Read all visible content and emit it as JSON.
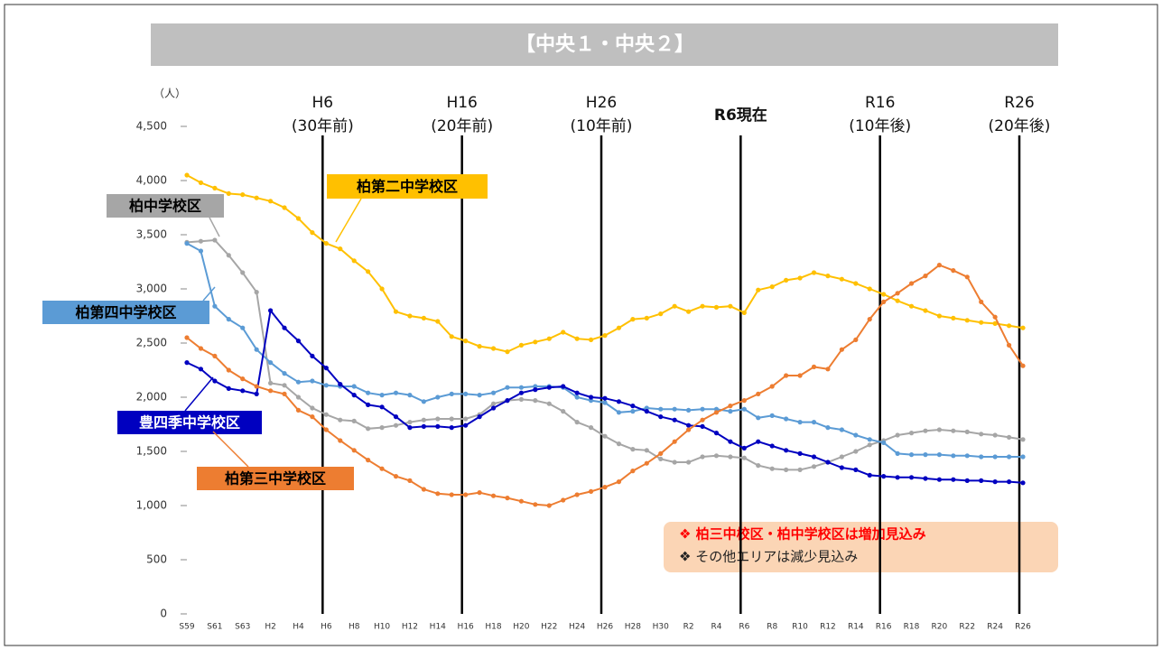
{
  "chart_data": {
    "type": "line",
    "title": "【中央１・中央２】",
    "y_label": "（人）",
    "categories": [
      "S59",
      null,
      "S61",
      null,
      "S63",
      null,
      "H2",
      null,
      "H4",
      null,
      "H6",
      null,
      "H8",
      null,
      "H10",
      null,
      "H12",
      null,
      "H14",
      null,
      "H16",
      null,
      "H18",
      null,
      "H20",
      null,
      "H22",
      null,
      "H24",
      null,
      "H26",
      null,
      "H28",
      null,
      "H30",
      null,
      "R2",
      null,
      "R4",
      null,
      "R6",
      null,
      "R8",
      null,
      "R10",
      null,
      "R12",
      null,
      "R14",
      null,
      "R16",
      null,
      "R18",
      null,
      "R20",
      null,
      "R22",
      null,
      "R24",
      null,
      "R26"
    ],
    "ylim": [
      0,
      4500
    ],
    "yticks": [
      0,
      500,
      {
        "value": 1000,
        "label": "1,000"
      },
      {
        "value": 1500,
        "label": "1,500"
      },
      {
        "value": 2000,
        "label": "2,000"
      },
      {
        "value": 2500,
        "label": "2,500"
      },
      {
        "value": 3000,
        "label": "3,000"
      },
      {
        "value": 3500,
        "label": "3,500"
      },
      {
        "value": 4000,
        "label": "4,000"
      },
      {
        "value": 4500,
        "label": "4,500"
      }
    ],
    "series": [
      {
        "name": "柏第二中学校区",
        "color": "#ffc000",
        "text_color": "#000000",
        "values": [
          4050,
          3980,
          3930,
          3880,
          3870,
          3840,
          3810,
          3750,
          3650,
          3520,
          3420,
          3370,
          3260,
          3160,
          3000,
          2790,
          2750,
          2730,
          2700,
          2560,
          2520,
          2470,
          2450,
          2420,
          2480,
          2510,
          2540,
          2600,
          2540,
          2530,
          2570,
          2640,
          2720,
          2730,
          2770,
          2840,
          2790,
          2840,
          2830,
          2840,
          2780,
          2990,
          3020,
          3080,
          3100,
          3150,
          3120,
          3090,
          3050,
          3000,
          2950,
          2890,
          2840,
          2800,
          2750,
          2730,
          2710,
          2690,
          2680,
          2660,
          2640
        ]
      },
      {
        "name": "柏中学校区",
        "color": "#a6a6a6",
        "text_color": "#000000",
        "values": [
          3430,
          3440,
          3450,
          3310,
          3150,
          2970,
          2130,
          2110,
          2000,
          1900,
          1840,
          1790,
          1780,
          1710,
          1720,
          1740,
          1770,
          1790,
          1800,
          1800,
          1800,
          1840,
          1940,
          1970,
          1980,
          1970,
          1940,
          1870,
          1770,
          1720,
          1640,
          1570,
          1520,
          1510,
          1430,
          1400,
          1400,
          1450,
          1460,
          1450,
          1440,
          1370,
          1340,
          1330,
          1330,
          1360,
          1400,
          1450,
          1500,
          1560,
          1600,
          1650,
          1670,
          1690,
          1700,
          1690,
          1680,
          1660,
          1650,
          1630,
          1610
        ]
      },
      {
        "name": "柏第四中学校区",
        "color": "#5b9bd5",
        "text_color": "#000000",
        "values": [
          3420,
          3350,
          2840,
          2720,
          2640,
          2440,
          2320,
          2220,
          2140,
          2150,
          2110,
          2100,
          2100,
          2040,
          2020,
          2040,
          2020,
          1960,
          2000,
          2030,
          2030,
          2020,
          2040,
          2090,
          2090,
          2100,
          2100,
          2090,
          2000,
          1970,
          1950,
          1860,
          1870,
          1900,
          1890,
          1890,
          1880,
          1890,
          1890,
          1870,
          1890,
          1810,
          1830,
          1800,
          1770,
          1770,
          1720,
          1700,
          1650,
          1610,
          1580,
          1480,
          1470,
          1470,
          1470,
          1460,
          1460,
          1450,
          1450,
          1450,
          1450
        ]
      },
      {
        "name": "豊四季中学校区",
        "color": "#0000c0",
        "text_color": "#ffffff",
        "values": [
          2320,
          2260,
          2150,
          2080,
          2060,
          2030,
          2800,
          2640,
          2520,
          2380,
          2270,
          2120,
          2020,
          1930,
          1910,
          1820,
          1720,
          1730,
          1730,
          1720,
          1740,
          1820,
          1900,
          1970,
          2040,
          2070,
          2090,
          2100,
          2040,
          2000,
          1990,
          1960,
          1920,
          1870,
          1820,
          1790,
          1740,
          1730,
          1670,
          1590,
          1530,
          1590,
          1550,
          1510,
          1480,
          1450,
          1400,
          1350,
          1330,
          1280,
          1270,
          1260,
          1260,
          1250,
          1240,
          1240,
          1230,
          1230,
          1220,
          1220,
          1210
        ]
      },
      {
        "name": "柏第三中学校区",
        "color": "#ed7d31",
        "text_color": "#000000",
        "values": [
          2550,
          2450,
          2380,
          2250,
          2170,
          2100,
          2060,
          2030,
          1880,
          1820,
          1700,
          1600,
          1510,
          1420,
          1340,
          1270,
          1230,
          1150,
          1110,
          1100,
          1100,
          1120,
          1090,
          1070,
          1040,
          1010,
          1000,
          1050,
          1100,
          1130,
          1170,
          1220,
          1320,
          1390,
          1480,
          1590,
          1700,
          1790,
          1860,
          1920,
          1970,
          2030,
          2100,
          2200,
          2200,
          2280,
          2260,
          2440,
          2530,
          2720,
          2880,
          2960,
          3050,
          3120,
          3220,
          3170,
          3110,
          2880,
          2740,
          2480,
          2290
        ]
      }
    ],
    "markers": [
      {
        "category": "H6",
        "note": "(30年前)"
      },
      {
        "category": "H16",
        "note": "(20年前)"
      },
      {
        "category": "H26",
        "note": "(10年前)"
      },
      {
        "category": "R6",
        "note": "現在"
      },
      {
        "category": "R16",
        "note": "(10年後)"
      },
      {
        "category": "R26",
        "note": "(20年後)"
      }
    ],
    "notes": [
      "❖ 柏三中校区・柏中学校区は増加見込み",
      "❖ その他エリアは減少見込み"
    ]
  }
}
